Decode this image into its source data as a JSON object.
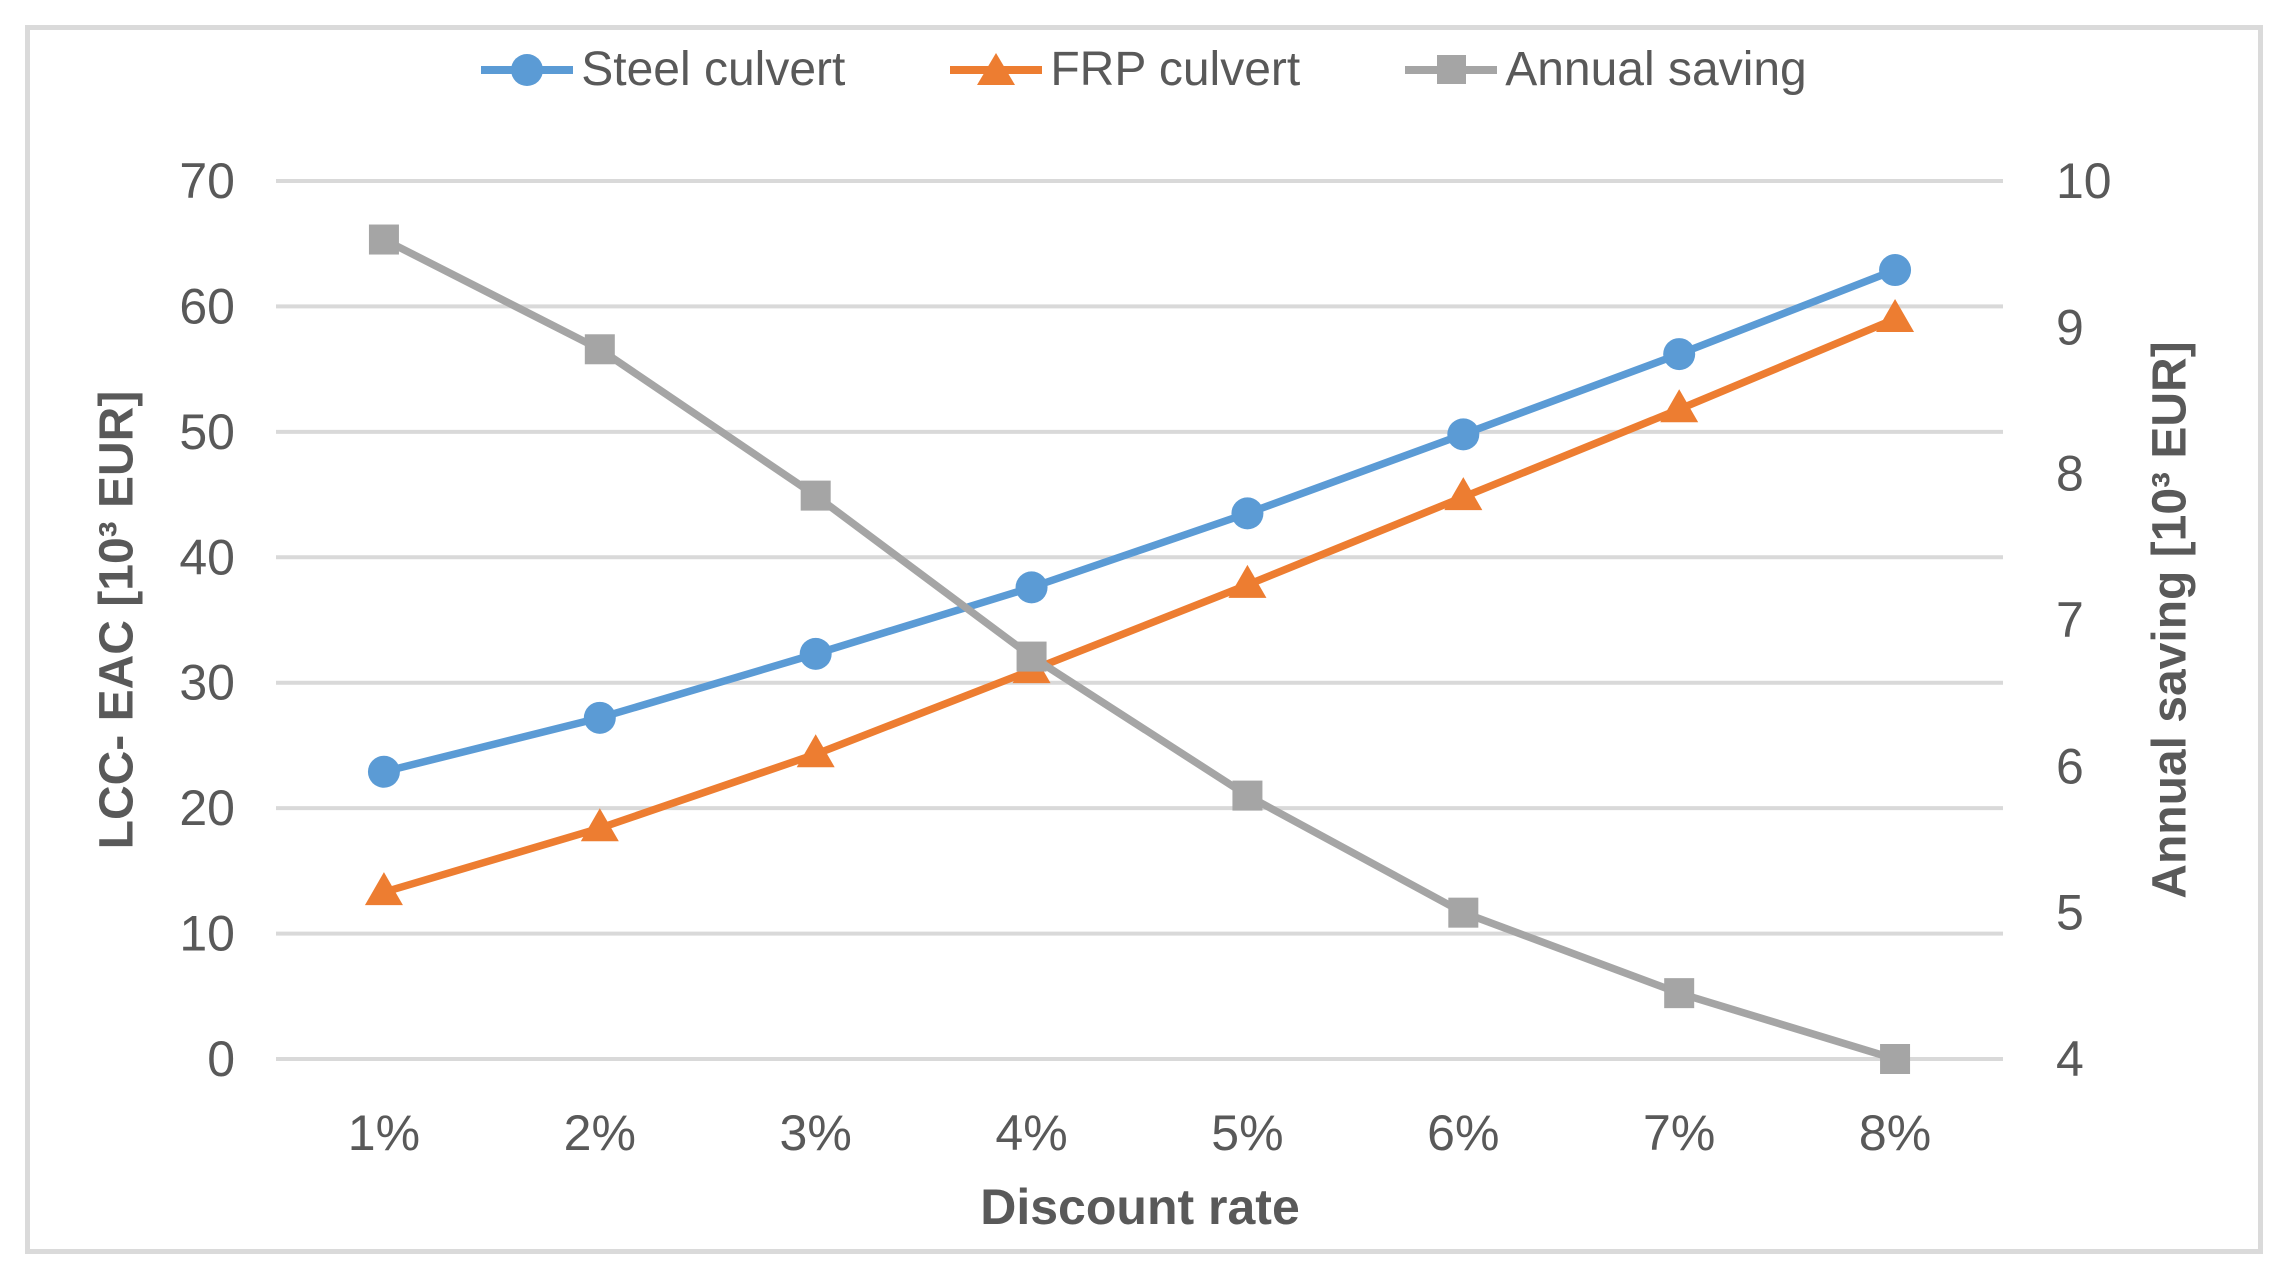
{
  "figure": {
    "background": "#FFFFFF",
    "border_color": "#DADADA"
  },
  "chart_data": {
    "type": "line",
    "title": "",
    "xlabel": "Discount rate",
    "ylabel_left": "LCC- EAC [10³ EUR]",
    "ylabel_right": "Annual saving [10³ EUR]",
    "categories": [
      "1%",
      "2%",
      "3%",
      "4%",
      "5%",
      "6%",
      "7%",
      "8%"
    ],
    "left_axis": {
      "title": "LCC- EAC [10³ EUR]",
      "min": 0,
      "max": 70,
      "step": 10,
      "ticks": [
        "0",
        "10",
        "20",
        "30",
        "40",
        "50",
        "60",
        "70"
      ]
    },
    "right_axis": {
      "title": "Annual saving [10³ EUR]",
      "min": 4,
      "max": 10,
      "step": 1,
      "ticks": [
        "4",
        "5",
        "6",
        "7",
        "8",
        "9",
        "10"
      ]
    },
    "grid": "horizontal-major",
    "legend_position": "top",
    "series": [
      {
        "name": "Steel culvert",
        "axis": "left",
        "marker": "circle",
        "color": "#5B9BD5",
        "values": [
          22.9,
          27.2,
          32.3,
          37.6,
          43.5,
          49.8,
          56.2,
          62.9
        ]
      },
      {
        "name": "FRP culvert",
        "axis": "left",
        "marker": "triangle",
        "color": "#ED7D31",
        "values": [
          13.3,
          18.4,
          24.3,
          31.0,
          37.8,
          44.8,
          51.8,
          59.0
        ]
      },
      {
        "name": "Annual saving",
        "axis": "right",
        "marker": "square",
        "color": "#A5A5A5",
        "values": [
          9.6,
          8.85,
          7.85,
          6.75,
          5.8,
          5.0,
          4.45,
          4.0
        ]
      }
    ],
    "styles": {
      "gridline_color": "#D9D9D9",
      "tick_text_color": "#595959",
      "axis_title_color": "#595959"
    }
  }
}
